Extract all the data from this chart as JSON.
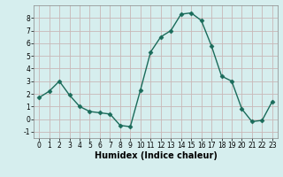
{
  "x": [
    0,
    1,
    2,
    3,
    4,
    5,
    6,
    7,
    8,
    9,
    10,
    11,
    12,
    13,
    14,
    15,
    16,
    17,
    18,
    19,
    20,
    21,
    22,
    23
  ],
  "y": [
    1.7,
    2.2,
    3.0,
    1.9,
    1.0,
    0.6,
    0.5,
    0.4,
    -0.5,
    -0.6,
    2.3,
    5.3,
    6.5,
    7.0,
    8.3,
    8.4,
    7.8,
    5.8,
    3.4,
    3.0,
    0.8,
    -0.2,
    -0.1,
    1.4
  ],
  "line_color": "#1a6b5a",
  "marker": "D",
  "markersize": 2.5,
  "linewidth": 1.0,
  "xlabel": "Humidex (Indice chaleur)",
  "xlim": [
    -0.5,
    23.5
  ],
  "ylim": [
    -1.5,
    9.0
  ],
  "yticks": [
    -1,
    0,
    1,
    2,
    3,
    4,
    5,
    6,
    7,
    8
  ],
  "xticks": [
    0,
    1,
    2,
    3,
    4,
    5,
    6,
    7,
    8,
    9,
    10,
    11,
    12,
    13,
    14,
    15,
    16,
    17,
    18,
    19,
    20,
    21,
    22,
    23
  ],
  "bg_color": "#d6eeee",
  "grid_color": "#c8b8b8",
  "tick_fontsize": 5.5,
  "xlabel_fontsize": 7,
  "xlabel_fontweight": "bold"
}
